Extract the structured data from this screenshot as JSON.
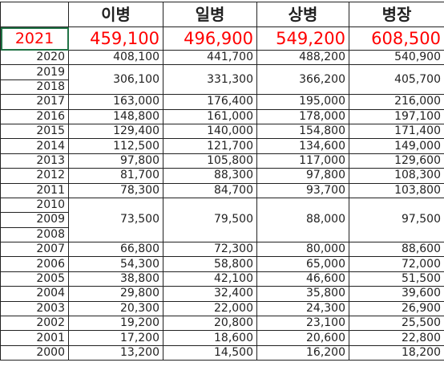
{
  "table": {
    "header": [
      "이병",
      "일병",
      "상병",
      "병장"
    ],
    "rows": [
      {
        "years": [
          "2021"
        ],
        "values": [
          "459,100",
          "496,900",
          "549,200",
          "608,500"
        ]
      },
      {
        "years": [
          "2020"
        ],
        "values": [
          "408,100",
          "441,700",
          "488,200",
          "540,900"
        ]
      },
      {
        "years": [
          "2019",
          "2018"
        ],
        "values": [
          "306,100",
          "331,300",
          "366,200",
          "405,700"
        ]
      },
      {
        "years": [
          "2017"
        ],
        "values": [
          "163,000",
          "176,400",
          "195,000",
          "216,000"
        ]
      },
      {
        "years": [
          "2016"
        ],
        "values": [
          "148,800",
          "161,000",
          "178,000",
          "197,100"
        ]
      },
      {
        "years": [
          "2015"
        ],
        "values": [
          "129,400",
          "140,000",
          "154,800",
          "171,400"
        ]
      },
      {
        "years": [
          "2014"
        ],
        "values": [
          "112,500",
          "121,700",
          "134,600",
          "149,000"
        ]
      },
      {
        "years": [
          "2013"
        ],
        "values": [
          "97,800",
          "105,800",
          "117,000",
          "129,600"
        ]
      },
      {
        "years": [
          "2012"
        ],
        "values": [
          "81,700",
          "88,300",
          "97,800",
          "108,300"
        ]
      },
      {
        "years": [
          "2011"
        ],
        "values": [
          "78,300",
          "84,700",
          "93,700",
          "103,800"
        ]
      },
      {
        "years": [
          "2010",
          "2009",
          "2008"
        ],
        "values": [
          "73,500",
          "79,500",
          "88,000",
          "97,500"
        ]
      },
      {
        "years": [
          "2007"
        ],
        "values": [
          "66,800",
          "72,300",
          "80,000",
          "88,600"
        ]
      },
      {
        "years": [
          "2006"
        ],
        "values": [
          "54,300",
          "58,800",
          "65,000",
          "72,000"
        ]
      },
      {
        "years": [
          "2005"
        ],
        "values": [
          "38,800",
          "42,100",
          "46,600",
          "51,500"
        ]
      },
      {
        "years": [
          "2004"
        ],
        "values": [
          "29,800",
          "32,400",
          "35,800",
          "39,600"
        ]
      },
      {
        "years": [
          "2003"
        ],
        "values": [
          "20,300",
          "22,000",
          "24,300",
          "26,900"
        ]
      },
      {
        "years": [
          "2002"
        ],
        "values": [
          "19,200",
          "20,800",
          "23,100",
          "25,500"
        ]
      },
      {
        "years": [
          "2001"
        ],
        "values": [
          "17,200",
          "18,600",
          "20,600",
          "22,800"
        ]
      },
      {
        "years": [
          "2000"
        ],
        "values": [
          "13,200",
          "14,500",
          "16,200",
          "18,200"
        ]
      }
    ]
  }
}
